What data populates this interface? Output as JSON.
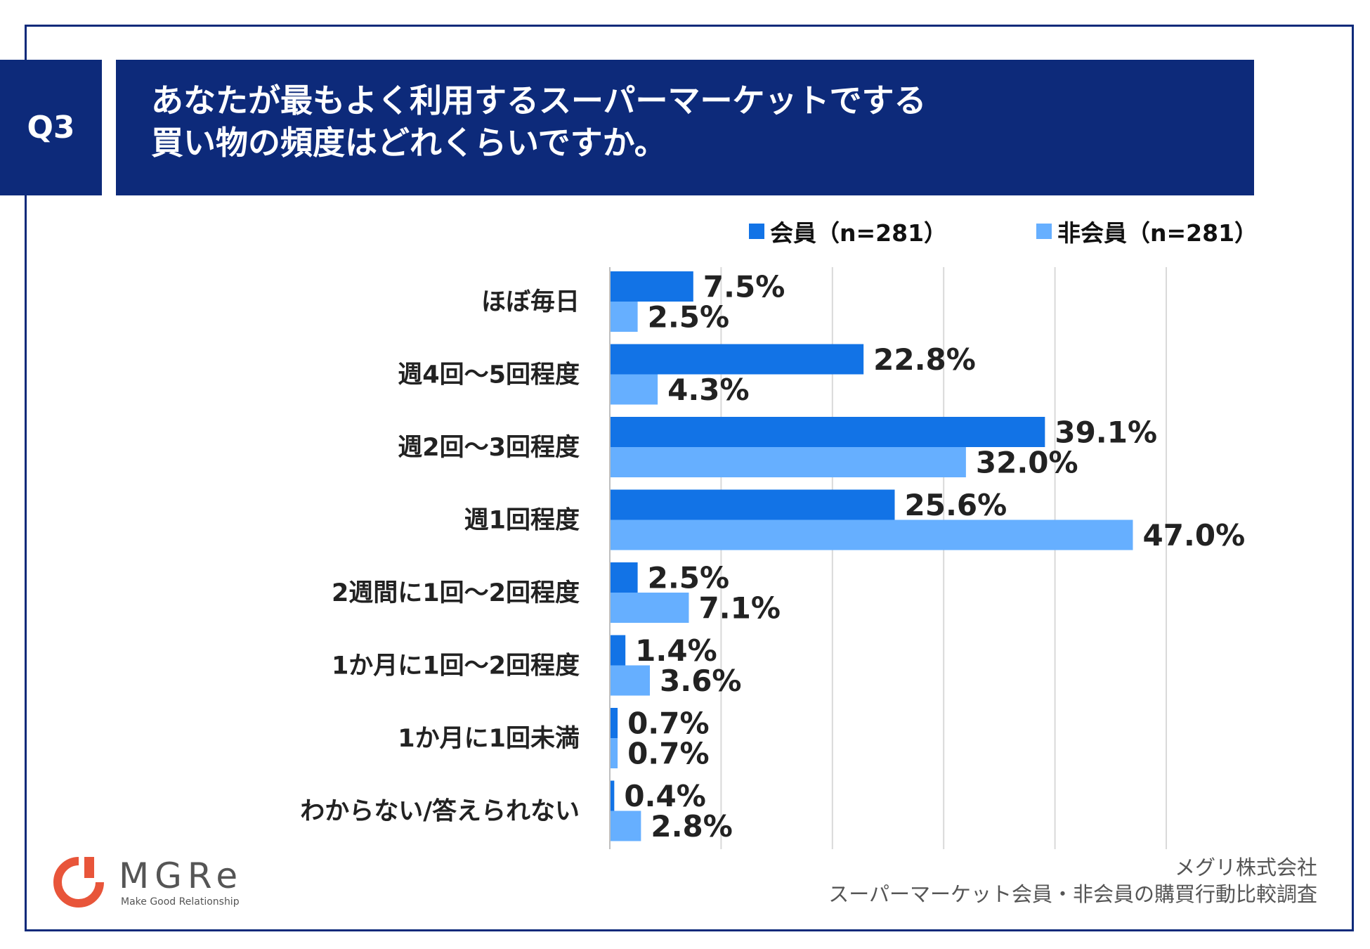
{
  "question": {
    "badge": "Q3",
    "title_line1": "あなたが最もよく利用するスーパーマーケットでする",
    "title_line2": "買い物の頻度はどれくらいですか。"
  },
  "colors": {
    "navy": "#0d2a7a",
    "member": "#1273e6",
    "non_member": "#66afff",
    "gridline": "#d9d9d9"
  },
  "chart_data": {
    "type": "bar",
    "orientation": "horizontal",
    "categories": [
      "ほぼ毎日",
      "週4回～5回程度",
      "週2回～3回程度",
      "週1回程度",
      "2週間に1回～2回程度",
      "1か月に1回～2回程度",
      "1か月に1回未満",
      "わからない/答えられない"
    ],
    "series": [
      {
        "name": "会員（n=281）",
        "values": [
          7.5,
          22.8,
          39.1,
          25.6,
          2.5,
          1.4,
          0.7,
          0.4
        ]
      },
      {
        "name": "非会員（n=281）",
        "values": [
          2.5,
          4.3,
          32.0,
          47.0,
          7.1,
          3.6,
          0.7,
          2.8
        ]
      }
    ],
    "value_suffix": "%",
    "xlim": [
      0,
      50
    ],
    "grid": true,
    "legend_position": "top-right"
  },
  "footer": {
    "company": "メグリ株式会社",
    "survey": "スーパーマーケット会員・非会員の購買行動比較調査"
  },
  "logo": {
    "name": "MGRe",
    "tagline": "Make Good Relationship"
  }
}
